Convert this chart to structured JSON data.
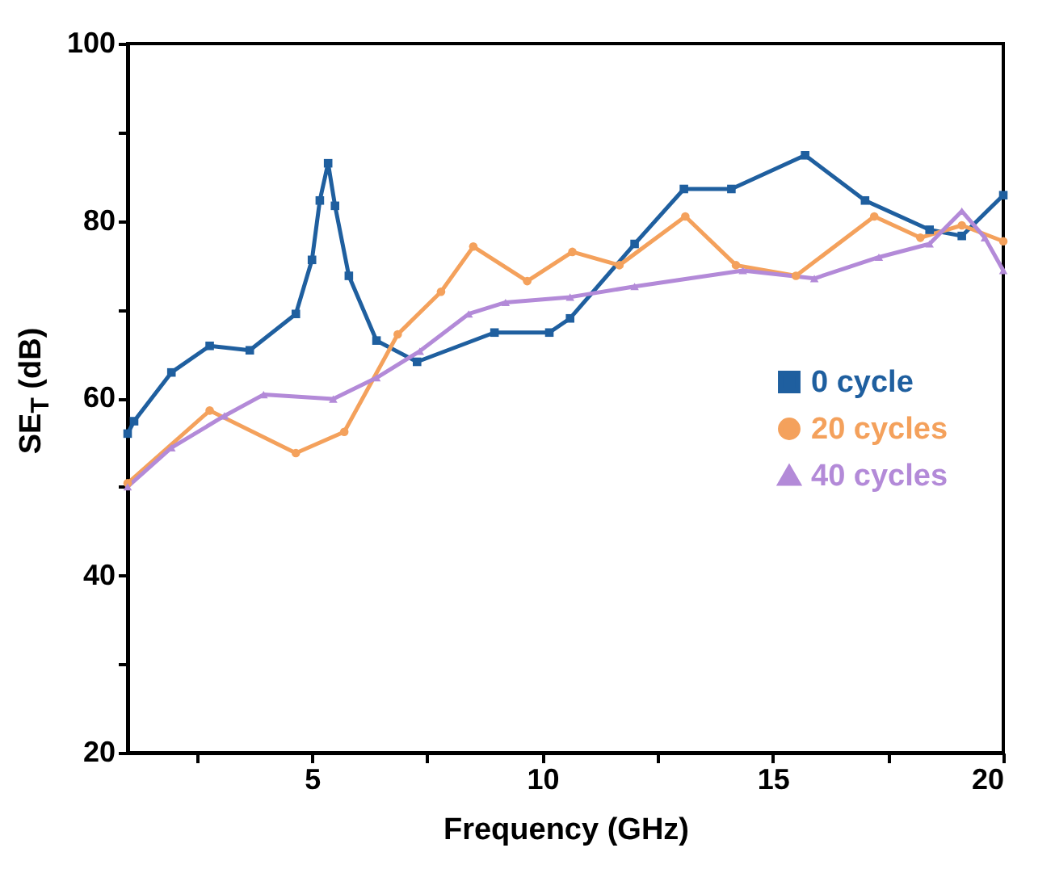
{
  "chart_data": {
    "type": "line",
    "xlabel": "Frequency (GHz)",
    "ylabel": "SE$_{T}$ (dB)",
    "xlim": [
      1,
      20
    ],
    "ylim": [
      20,
      100
    ],
    "xticks": [
      {
        "value": 2.5,
        "label": null
      },
      5,
      {
        "value": 7.5,
        "label": null
      },
      10,
      {
        "value": 12.5,
        "label": null
      },
      15,
      {
        "value": 17.5,
        "label": null
      },
      20
    ],
    "yticks": [
      20,
      {
        "value": 30,
        "label": null
      },
      40,
      {
        "value": 50,
        "label": null
      },
      60,
      {
        "value": 70,
        "label": null
      },
      80,
      {
        "value": 90,
        "label": null
      },
      100
    ],
    "grid": false,
    "legend": "right",
    "line_style": "solid",
    "series": [
      {
        "name": "0 cycle",
        "color": "#1f5f9f",
        "marker": "square",
        "x": [
          1,
          1.14,
          1.95,
          2.78,
          3.65,
          4.65,
          5.0,
          5.17,
          5.35,
          5.5,
          5.8,
          6.4,
          7.28,
          8.96,
          10.15,
          10.6,
          12.0,
          13.07,
          14.1,
          15.7,
          17.0,
          18.4,
          19.1,
          20
        ],
        "values": [
          56,
          57.4,
          62.9,
          65.9,
          65.4,
          69.5,
          75.6,
          82.3,
          86.5,
          81.7,
          73.8,
          66.5,
          64.1,
          67.4,
          67.4,
          69,
          77.4,
          83.6,
          83.6,
          87.4,
          82.3,
          79,
          78.3,
          82.9
        ]
      },
      {
        "name": "20 cycles",
        "color": "#f4a15c",
        "marker": "circle",
        "x": [
          1,
          2.78,
          4.65,
          5.7,
          6.86,
          7.8,
          8.5,
          9.67,
          10.65,
          11.67,
          13.1,
          14.2,
          15.5,
          17.2,
          18.2,
          19.1,
          20
        ],
        "values": [
          50.4,
          58.6,
          53.8,
          56.2,
          67.2,
          72,
          77.1,
          73.2,
          76.5,
          75,
          80.5,
          75,
          73.8,
          80.5,
          78.1,
          79.5,
          77.7
        ]
      },
      {
        "name": "40 cycles",
        "color": "#b38ad8",
        "marker": "triangle",
        "x": [
          1,
          1.95,
          3.1,
          3.95,
          5.46,
          6.4,
          7.34,
          8.4,
          9.2,
          10.6,
          12.0,
          14.35,
          15.9,
          17.3,
          18.4,
          19.1,
          19.6,
          20
        ],
        "values": [
          50,
          54.4,
          58,
          60.4,
          59.9,
          62.3,
          65.3,
          69.5,
          70.8,
          71.4,
          72.6,
          74.4,
          73.5,
          75.9,
          77.4,
          81.1,
          78.1,
          74.4
        ]
      }
    ]
  }
}
